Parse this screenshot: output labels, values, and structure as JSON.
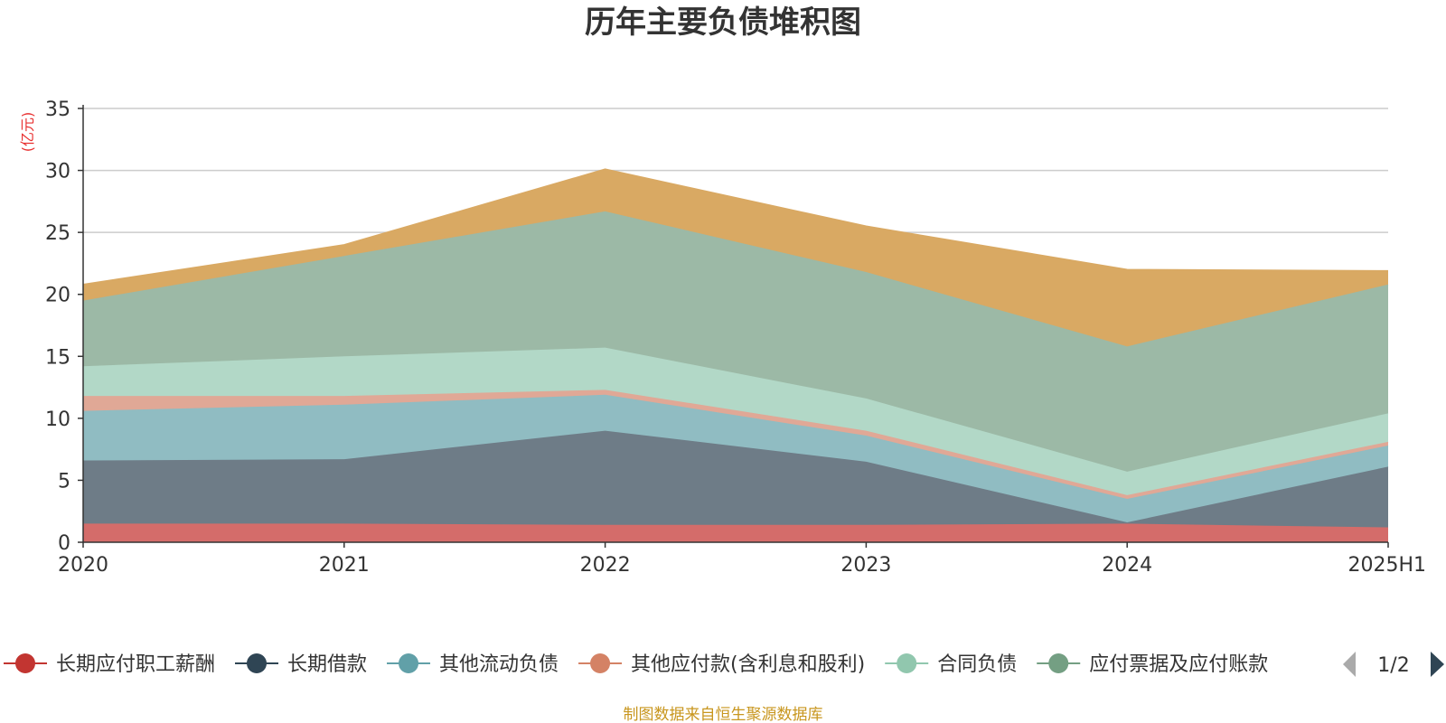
{
  "chart_data": {
    "type": "area",
    "title": "历年主要负债堆积图",
    "ylabel": "(亿元)",
    "categories": [
      "2020",
      "2021",
      "2022",
      "2023",
      "2024",
      "2025H1"
    ],
    "ylim": [
      0,
      35
    ],
    "yticks": [
      "0",
      "5",
      "10",
      "15",
      "20",
      "25",
      "30",
      "35"
    ],
    "stacked": true,
    "grid": true,
    "legend_position": "bottom",
    "series": [
      {
        "name": "长期应付职工薪酬",
        "color": "#c23531",
        "fill": "#d46c6a",
        "values": [
          1.5,
          1.5,
          1.4,
          1.4,
          1.5,
          1.2
        ]
      },
      {
        "name": "长期借款",
        "color": "#2f4554",
        "fill": "#6e7c87",
        "values": [
          5.1,
          5.2,
          7.6,
          5.1,
          0.1,
          4.9
        ]
      },
      {
        "name": "其他流动负债",
        "color": "#61a0a8",
        "fill": "#90bcc2",
        "values": [
          4.0,
          4.4,
          2.9,
          2.1,
          1.9,
          1.7
        ]
      },
      {
        "name": "其他应付款(含利息和股利)",
        "color": "#d48265",
        "fill": "#e0a896",
        "values": [
          1.2,
          0.7,
          0.4,
          0.4,
          0.3,
          0.3
        ]
      },
      {
        "name": "合同负债",
        "color": "#91c7ae",
        "fill": "#b2d8c7",
        "values": [
          2.4,
          3.2,
          3.4,
          2.6,
          1.9,
          2.3
        ]
      },
      {
        "name": "应付票据及应付账款",
        "color": "#749f83",
        "fill": "#9cb9a6",
        "values": [
          5.3,
          8.1,
          11.0,
          10.2,
          10.1,
          10.4
        ]
      },
      {
        "name": "",
        "color": "#ca8622",
        "fill": "#d9a963",
        "values": [
          1.3,
          0.9,
          3.4,
          3.7,
          6.2,
          1.1
        ]
      }
    ]
  },
  "legend": {
    "items": [
      {
        "label": "长期应付职工薪酬",
        "color": "#c23531"
      },
      {
        "label": "长期借款",
        "color": "#2f4554"
      },
      {
        "label": "其他流动负债",
        "color": "#61a0a8"
      },
      {
        "label": "其他应付款(含利息和股利)",
        "color": "#d48265"
      },
      {
        "label": "合同负债",
        "color": "#91c7ae"
      },
      {
        "label": "应付票据及应付账款",
        "color": "#749f83"
      }
    ],
    "page_indicator": "1/2",
    "prev_icon": "triangle-left-icon",
    "next_icon": "triangle-right-icon",
    "prev_color": "#aaaaaa",
    "next_color": "#2f4554"
  },
  "footer": {
    "source": "制图数据来自恒生聚源数据库"
  }
}
